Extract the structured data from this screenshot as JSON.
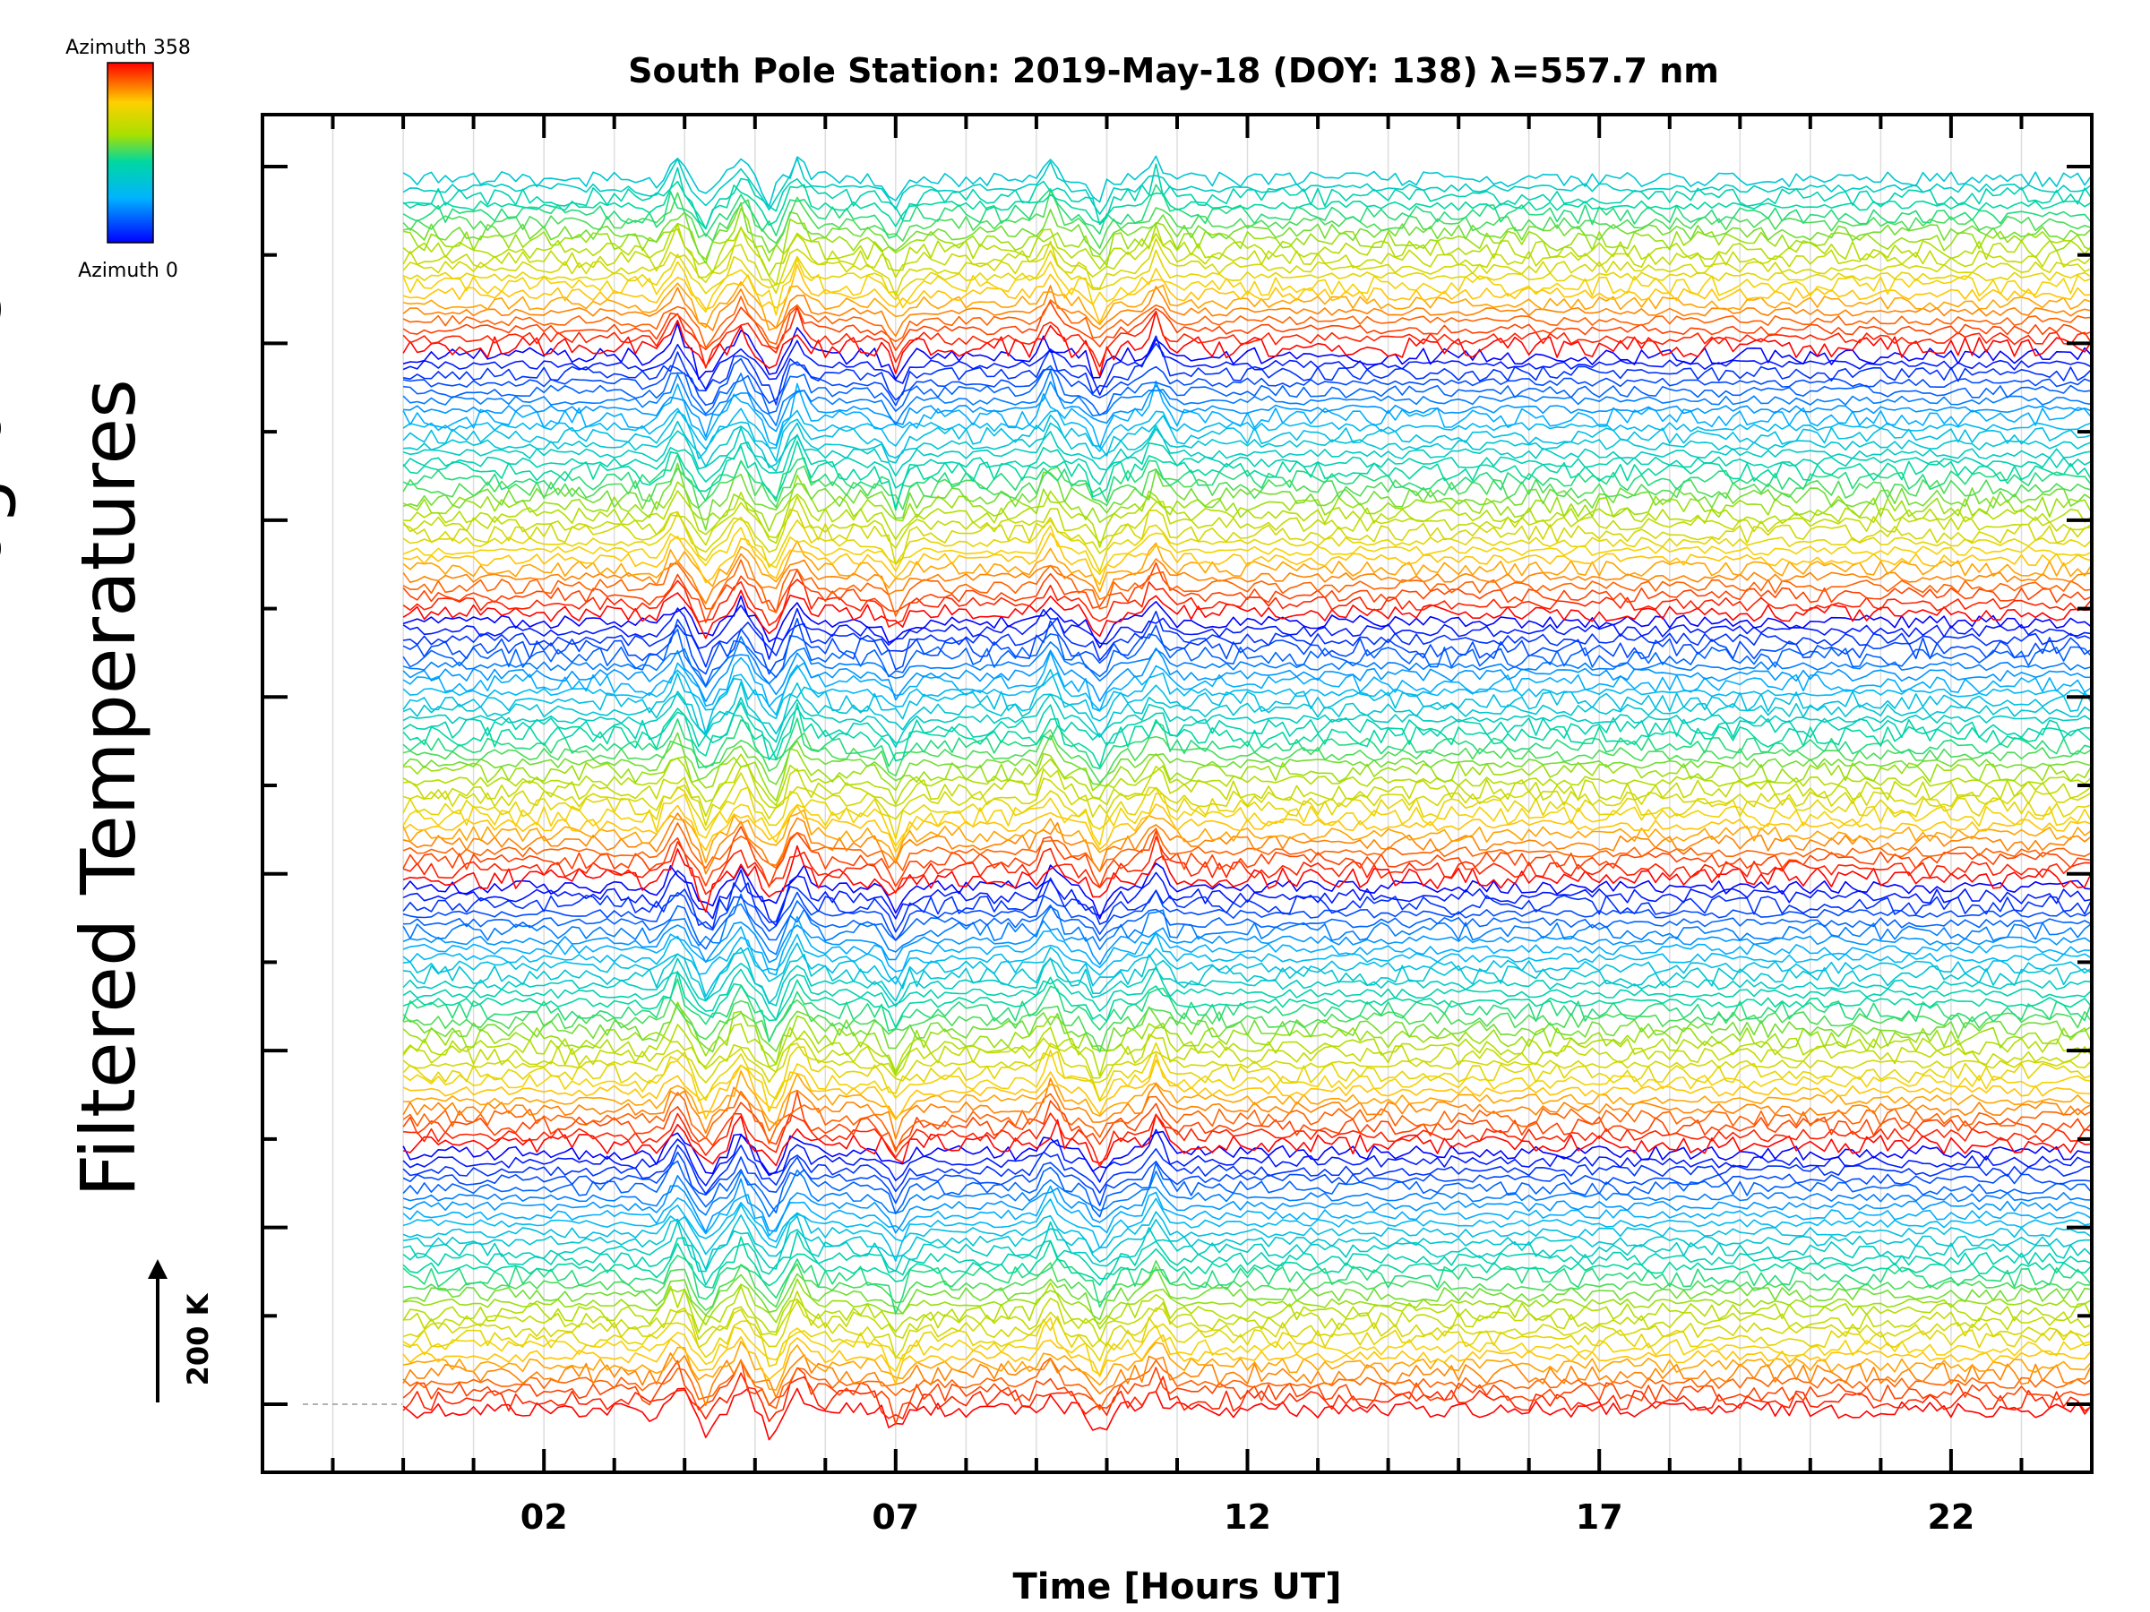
{
  "chart_data": {
    "type": "line",
    "title": "South Pole Station: 2019-May-18 (DOY: 138) λ=557.7 nm",
    "xlabel": "Time [Hours UT]",
    "ylabel": "Filtered Temperatures",
    "ylabel_cut": "ograms",
    "x_ticks": [
      {
        "value": 2,
        "label": "02"
      },
      {
        "value": 7,
        "label": "07"
      },
      {
        "value": 12,
        "label": "12"
      },
      {
        "value": 17,
        "label": "17"
      },
      {
        "value": 22,
        "label": "22"
      }
    ],
    "xlim": [
      -2,
      24
    ],
    "data_x_start": 0,
    "data_x_end": 24,
    "series_count": 140,
    "series_per_sweep": 30,
    "scale_bar_label": "200 K",
    "scale_bar_value": 200,
    "colorbar": {
      "top_label": "Azimuth  358",
      "bottom_label": "Azimuth  0",
      "min": 0,
      "max": 358,
      "colormap": "rainbow"
    },
    "event_times": [
      3.9,
      4.3,
      4.8,
      5.25,
      5.6,
      7.0,
      9.2,
      9.9,
      10.7
    ],
    "gridline_color": "#dddddd"
  }
}
